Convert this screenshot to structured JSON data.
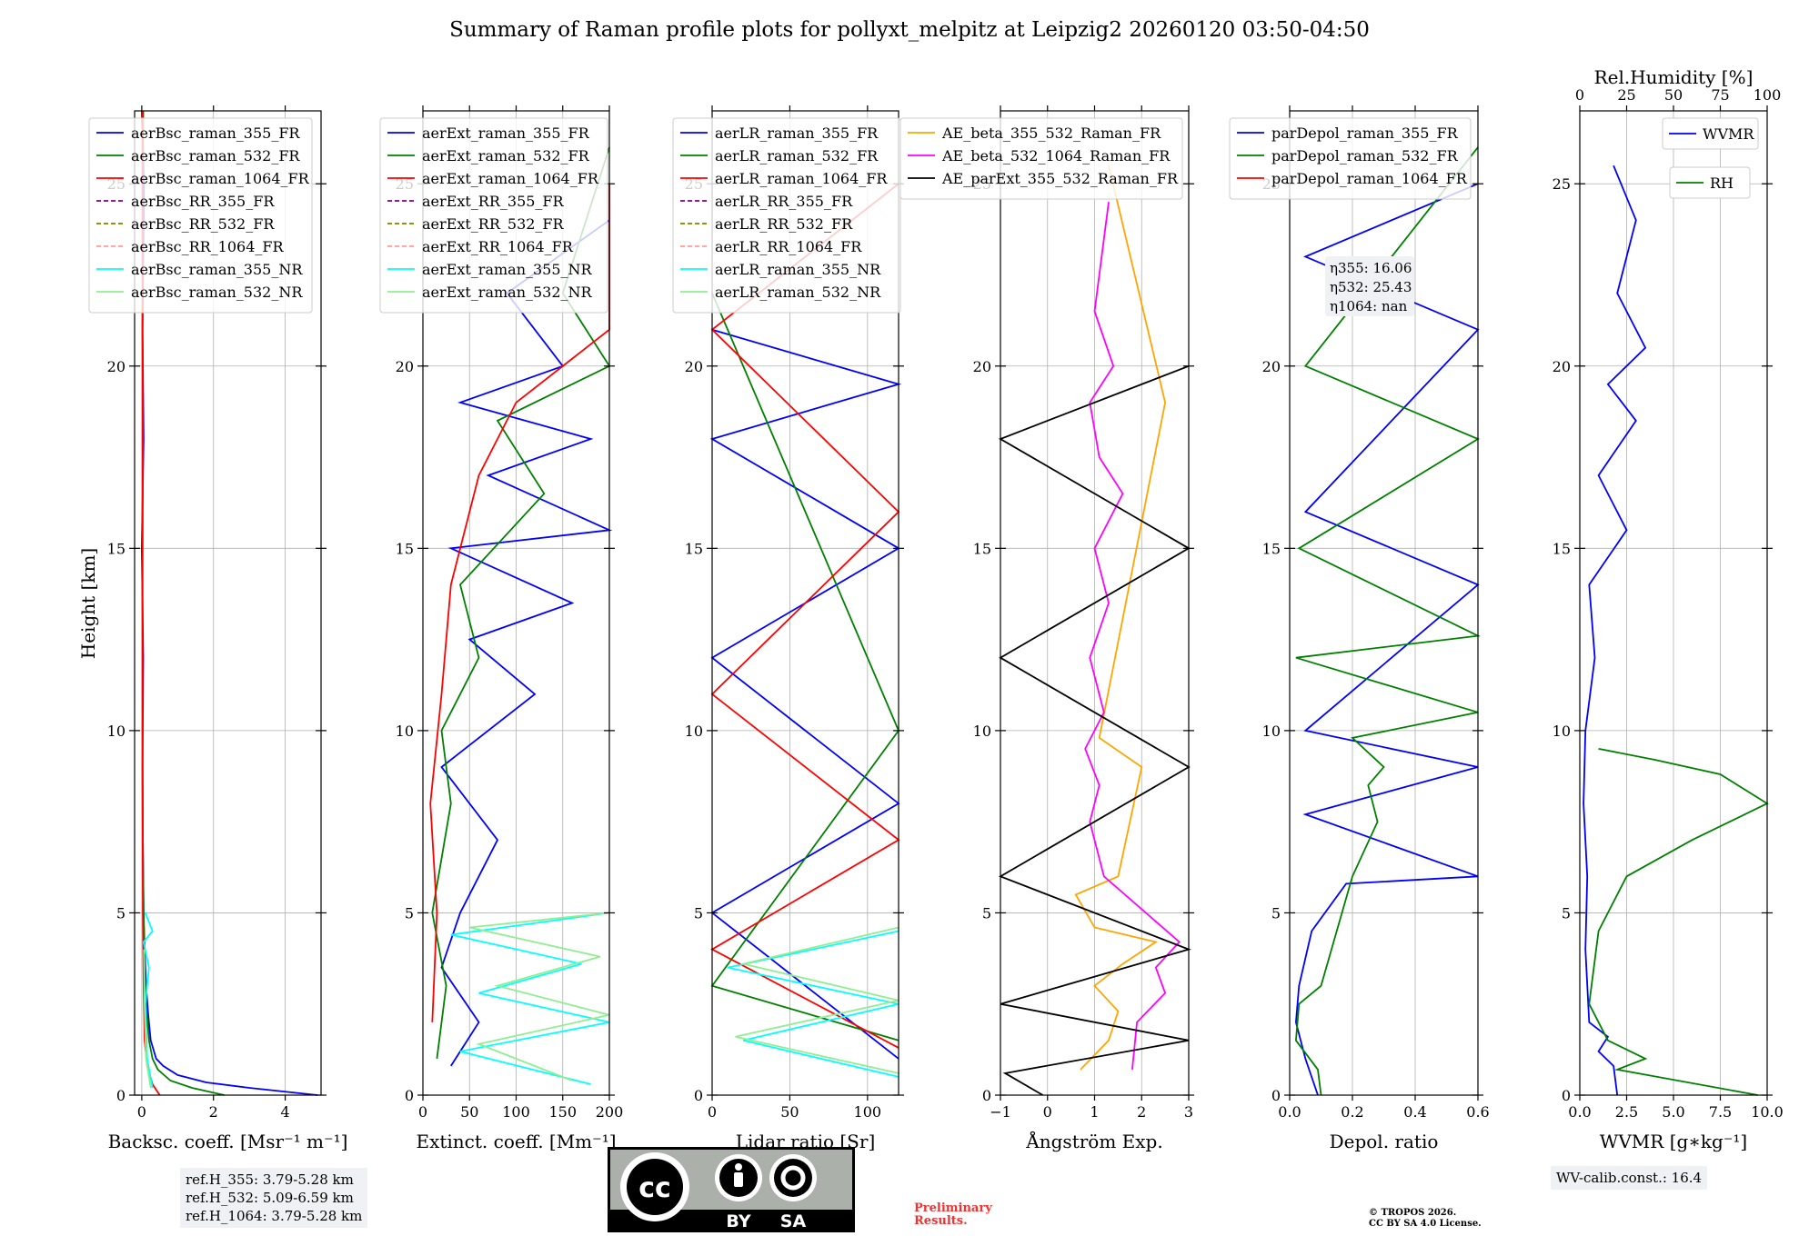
{
  "figure_title": "Summary of Raman profile plots for pollyxt_melpitz at Leipzig2 20260120 03:50-04:50",
  "y_axis_label": "Height [km]",
  "ref_heights": [
    "ref.H_355: 3.79-5.28 km",
    "ref.H_532: 5.09-6.59 km",
    "ref.H_1064: 3.79-5.28 km"
  ],
  "wv_calib": "WV-calib.const.: 16.4",
  "eta": [
    "η355: 16.06",
    "η532: 25.43",
    "η1064: nan"
  ],
  "license": {
    "cc": "cc",
    "by": "BY",
    "sa": "SA"
  },
  "preliminary": [
    "Preliminary",
    "Results."
  ],
  "copyright": [
    "© TROPOS 2026.",
    "CC BY SA 4.0 License."
  ],
  "chart_data": [
    {
      "type": "line",
      "title": "",
      "xlabel": "Backsc. coeff. [Msr⁻¹ m⁻¹]",
      "ylabel": "Height [km]",
      "xlim": [
        -0.2,
        5
      ],
      "ylim": [
        0,
        27
      ],
      "xticks": [
        "0",
        "2",
        "4"
      ],
      "yticks": [
        "0",
        "5",
        "10",
        "15",
        "20",
        "25"
      ],
      "grid": true,
      "legend_position": "top-left",
      "legend": [
        "aerBsc_raman_355_FR",
        "aerBsc_raman_532_FR",
        "aerBsc_raman_1064_FR",
        "aerBsc_RR_355_FR",
        "aerBsc_RR_532_FR",
        "aerBsc_RR_1064_FR",
        "aerBsc_raman_355_NR",
        "aerBsc_raman_532_NR"
      ],
      "series": [
        {
          "name": "aerBsc_raman_355_FR",
          "color": "#0000ff",
          "style": "solid",
          "x": [
            4.9,
            3.0,
            1.8,
            1.0,
            0.6,
            0.4,
            0.25,
            0.18,
            0.12,
            0.08,
            0.05,
            0.03,
            0.02,
            0.04,
            0.0,
            0.05,
            0.02,
            0.06,
            0.0
          ],
          "y": [
            0.0,
            0.2,
            0.35,
            0.55,
            0.8,
            1.0,
            1.5,
            2.2,
            3.0,
            4.0,
            5.0,
            7.0,
            9.0,
            12.0,
            15.0,
            18.0,
            21.0,
            25.0,
            27.0
          ]
        },
        {
          "name": "aerBsc_raman_532_FR",
          "color": "#008000",
          "style": "solid",
          "x": [
            2.3,
            1.4,
            0.8,
            0.45,
            0.3,
            0.2,
            0.12,
            0.08,
            0.05,
            0.03,
            0.02,
            0.02,
            0.03,
            0.02,
            0.03,
            0.04
          ],
          "y": [
            0.0,
            0.2,
            0.4,
            0.7,
            1.0,
            1.5,
            2.5,
            3.5,
            5.0,
            7.0,
            10.0,
            14.0,
            18.0,
            21.0,
            24.0,
            27.0
          ]
        },
        {
          "name": "aerBsc_raman_1064_FR",
          "color": "#ff0000",
          "style": "solid",
          "x": [
            0.5,
            0.3,
            0.15,
            0.08,
            0.05,
            0.03,
            0.02,
            0.02,
            0.02,
            0.02
          ],
          "y": [
            0.0,
            0.3,
            0.8,
            1.5,
            3.0,
            5.0,
            8.0,
            14.0,
            20.0,
            27.0
          ]
        },
        {
          "name": "aerBsc_raman_355_NR",
          "color": "#00ffff",
          "style": "solid",
          "x": [
            0.3,
            0.15,
            0.1,
            0.2,
            0.05,
            0.3,
            0.1
          ],
          "y": [
            0.2,
            1.0,
            2.5,
            3.5,
            4.2,
            4.5,
            5.0
          ]
        },
        {
          "name": "aerBsc_raman_532_NR",
          "color": "#90ee90",
          "style": "solid",
          "x": [
            0.25,
            0.12,
            0.08,
            0.06
          ],
          "y": [
            0.2,
            1.0,
            2.5,
            4.0
          ]
        }
      ]
    },
    {
      "type": "line",
      "title": "",
      "xlabel": "Extinct. coeff. [Mm⁻¹]",
      "ylabel": "",
      "xlim": [
        0,
        200
      ],
      "ylim": [
        0,
        27
      ],
      "xticks": [
        "0",
        "50",
        "100",
        "150",
        "200"
      ],
      "yticks": [
        "0",
        "5",
        "10",
        "15",
        "20",
        "25"
      ],
      "grid": true,
      "legend_position": "top-left",
      "legend": [
        "aerExt_raman_355_FR",
        "aerExt_raman_532_FR",
        "aerExt_raman_1064_FR",
        "aerExt_RR_355_FR",
        "aerExt_RR_532_FR",
        "aerExt_RR_1064_FR",
        "aerExt_raman_355_NR",
        "aerExt_raman_532_NR"
      ],
      "series": [
        {
          "name": "aerExt_raman_355_FR",
          "color": "#0000ff",
          "style": "solid",
          "x": [
            30,
            60,
            20,
            40,
            80,
            20,
            120,
            50,
            160,
            30,
            200,
            70,
            180,
            40,
            150,
            90,
            200
          ],
          "y": [
            0.8,
            2.0,
            3.5,
            5.0,
            7.0,
            9.0,
            11.0,
            12.5,
            13.5,
            15.0,
            15.5,
            17.0,
            18.0,
            19.0,
            20.0,
            22.0,
            24.0
          ]
        },
        {
          "name": "aerExt_raman_532_FR",
          "color": "#008000",
          "style": "solid",
          "x": [
            15,
            25,
            10,
            30,
            20,
            60,
            40,
            130,
            80,
            200,
            150,
            200
          ],
          "y": [
            1.0,
            3.0,
            5.0,
            8.0,
            10.0,
            12.0,
            14.0,
            16.5,
            18.5,
            20.0,
            22.0,
            26.0
          ]
        },
        {
          "name": "aerExt_raman_1064_FR",
          "color": "#ff0000",
          "style": "solid",
          "x": [
            10,
            15,
            8,
            20,
            30,
            60,
            100,
            200,
            200
          ],
          "y": [
            2.0,
            5.0,
            8.0,
            11.0,
            14.0,
            17.0,
            19.0,
            21.0,
            25.0
          ]
        },
        {
          "name": "aerExt_raman_355_NR",
          "color": "#00ffff",
          "style": "solid",
          "x": [
            180,
            40,
            200,
            60,
            170,
            30,
            200
          ],
          "y": [
            0.3,
            1.2,
            2.0,
            2.8,
            3.6,
            4.4,
            5.0
          ]
        },
        {
          "name": "aerExt_raman_532_NR",
          "color": "#90ee90",
          "style": "solid",
          "x": [
            160,
            60,
            200,
            80,
            190,
            50,
            200
          ],
          "y": [
            0.4,
            1.4,
            2.2,
            3.0,
            3.8,
            4.6,
            5.0
          ]
        }
      ]
    },
    {
      "type": "line",
      "title": "",
      "xlabel": "Lidar ratio [Sr]",
      "ylabel": "",
      "xlim": [
        0,
        120
      ],
      "ylim": [
        0,
        27
      ],
      "xticks": [
        "0",
        "50",
        "100"
      ],
      "yticks": [
        "0",
        "5",
        "10",
        "15",
        "20",
        "25"
      ],
      "grid": true,
      "legend_position": "top-left",
      "legend": [
        "aerLR_raman_355_FR",
        "aerLR_raman_532_FR",
        "aerLR_raman_1064_FR",
        "aerLR_RR_355_FR",
        "aerLR_RR_532_FR",
        "aerLR_RR_1064_FR",
        "aerLR_raman_355_NR",
        "aerLR_raman_532_NR"
      ],
      "series": [
        {
          "name": "aerLR_raman_355_FR",
          "color": "#0000ff",
          "style": "solid",
          "x": [
            120,
            0,
            120,
            0,
            120,
            0,
            120,
            0
          ],
          "y": [
            1.0,
            5.0,
            8.0,
            12.0,
            15.0,
            18.0,
            19.5,
            21.0
          ]
        },
        {
          "name": "aerLR_raman_532_FR",
          "color": "#008000",
          "style": "solid",
          "x": [
            120,
            0,
            120,
            0
          ],
          "y": [
            1.5,
            3.0,
            10.0,
            22.0
          ]
        },
        {
          "name": "aerLR_raman_1064_FR",
          "color": "#ff0000",
          "style": "solid",
          "x": [
            120,
            0,
            120,
            0,
            120,
            0,
            120
          ],
          "y": [
            1.3,
            4.0,
            7.0,
            11.0,
            16.0,
            21.0,
            25.0
          ]
        },
        {
          "name": "aerLR_raman_355_NR",
          "color": "#00ffff",
          "style": "solid",
          "x": [
            120,
            20,
            120,
            10,
            120
          ],
          "y": [
            0.5,
            1.5,
            2.5,
            3.5,
            4.5
          ]
        },
        {
          "name": "aerLR_raman_532_NR",
          "color": "#90ee90",
          "style": "solid",
          "x": [
            120,
            15,
            120,
            20,
            120
          ],
          "y": [
            0.6,
            1.6,
            2.6,
            3.6,
            4.6
          ]
        }
      ]
    },
    {
      "type": "line",
      "title": "",
      "xlabel": "Ångström Exp.",
      "ylabel": "",
      "xlim": [
        -1,
        3
      ],
      "ylim": [
        0,
        27
      ],
      "xticks": [
        "−1",
        "0",
        "1",
        "2",
        "3"
      ],
      "yticks": [
        "0",
        "5",
        "10",
        "15",
        "20",
        "25"
      ],
      "grid": true,
      "legend_position": "top-right",
      "legend": [
        "AE_beta_355_532_Raman_FR",
        "AE_beta_532_1064_Raman_FR",
        "AE_parExt_355_532_Raman_FR"
      ],
      "series": [
        {
          "name": "AE_beta_355_532_Raman_FR",
          "color": "#ffa500",
          "style": "solid",
          "x": [
            0.7,
            1.3,
            1.5,
            1.0,
            1.6,
            2.3,
            1.0,
            0.6,
            1.5,
            2.0,
            1.1,
            2.5,
            1.3
          ],
          "y": [
            0.7,
            1.5,
            2.3,
            3.0,
            3.6,
            4.2,
            4.6,
            5.5,
            6.0,
            9.0,
            9.8,
            19.0,
            25.5
          ]
        },
        {
          "name": "AE_beta_532_1064_Raman_FR",
          "color": "#ff00ff",
          "style": "solid",
          "x": [
            1.8,
            1.9,
            2.5,
            2.3,
            2.8,
            1.2,
            0.9,
            1.1,
            0.8,
            1.2,
            0.9,
            1.3,
            1.0,
            1.6,
            1.1,
            0.9,
            1.4,
            1.0,
            1.3
          ],
          "y": [
            0.7,
            2.0,
            2.8,
            3.5,
            4.2,
            6.0,
            7.5,
            8.5,
            9.5,
            10.5,
            12.0,
            13.5,
            15.0,
            16.5,
            17.5,
            19.0,
            20.0,
            21.5,
            24.5
          ]
        },
        {
          "name": "AE_parExt_355_532_Raman_FR",
          "color": "#000000",
          "style": "solid",
          "x": [
            -0.1,
            -0.9,
            3.0,
            -1.0,
            3.0,
            -1.0,
            3.0,
            -1.0,
            3.0,
            -1.0,
            3.0
          ],
          "y": [
            0.0,
            0.6,
            1.5,
            2.5,
            4.0,
            6.0,
            9.0,
            12.0,
            15.0,
            18.0,
            20.0
          ]
        }
      ]
    },
    {
      "type": "line",
      "title": "",
      "xlabel": "Depol. ratio",
      "ylabel": "",
      "xlim": [
        0,
        0.6
      ],
      "ylim": [
        0,
        27
      ],
      "xticks": [
        "0.0",
        "0.2",
        "0.4",
        "0.6"
      ],
      "yticks": [
        "0",
        "5",
        "10",
        "15",
        "20",
        "25"
      ],
      "grid": true,
      "legend_position": "top-left",
      "legend": [
        "parDepol_raman_355_FR",
        "parDepol_raman_532_FR",
        "parDepol_raman_1064_FR"
      ],
      "series": [
        {
          "name": "parDepol_raman_355_FR",
          "color": "#0000ff",
          "style": "solid",
          "x": [
            0.09,
            0.05,
            0.02,
            0.03,
            0.07,
            0.18,
            0.6,
            0.05,
            0.6,
            0.05,
            0.6,
            0.05,
            0.6,
            0.05,
            0.6
          ],
          "y": [
            0.0,
            1.0,
            2.0,
            3.0,
            4.5,
            5.8,
            6.0,
            7.7,
            9.0,
            10.0,
            14.0,
            16.0,
            21.0,
            23.0,
            25.0
          ]
        },
        {
          "name": "parDepol_raman_532_FR",
          "color": "#008000",
          "style": "solid",
          "x": [
            0.1,
            0.09,
            0.02,
            0.03,
            0.1,
            0.2,
            0.28,
            0.25,
            0.3,
            0.2,
            0.6,
            0.02,
            0.6,
            0.03,
            0.6,
            0.05,
            0.6
          ],
          "y": [
            0.0,
            0.7,
            1.5,
            2.5,
            3.0,
            6.0,
            7.5,
            8.5,
            9.0,
            9.8,
            10.5,
            12.0,
            12.6,
            15.0,
            18.0,
            20.0,
            26.0
          ]
        }
      ]
    },
    {
      "type": "line",
      "title": "Rel.Humidity [%]",
      "xlabel": "WVMR [g∗kg⁻¹]",
      "ylabel": "",
      "xlim": [
        0,
        10
      ],
      "ylim": [
        0,
        27
      ],
      "xticks": [
        "0.0",
        "2.5",
        "5.0",
        "7.5",
        "10.0"
      ],
      "x2lim": [
        0,
        100
      ],
      "x2ticks": [
        "0",
        "25",
        "50",
        "75",
        "100"
      ],
      "yticks": [
        "0",
        "5",
        "10",
        "15",
        "20",
        "25"
      ],
      "grid": true,
      "legend_position": "top-right",
      "legend": [
        "WVMR",
        "RH"
      ],
      "series": [
        {
          "name": "WVMR",
          "color": "#0000ff",
          "style": "solid",
          "axis": "x",
          "x": [
            2.0,
            1.8,
            1.0,
            1.5,
            0.5,
            0.3,
            0.4,
            0.2,
            0.3,
            0.8,
            0.5,
            2.5,
            1.0,
            3.0,
            1.5,
            3.5,
            2.0,
            3.0,
            1.8
          ],
          "y": [
            0.0,
            0.8,
            1.2,
            1.6,
            2.0,
            4.0,
            6.0,
            8.0,
            10.0,
            12.0,
            14.0,
            15.5,
            17.0,
            18.5,
            19.5,
            20.5,
            22.0,
            24.0,
            25.5
          ]
        },
        {
          "name": "RH",
          "color": "#008000",
          "style": "solid",
          "axis": "x2",
          "x": [
            95,
            20,
            35,
            15,
            5,
            10,
            25,
            60,
            100,
            75,
            40,
            10
          ],
          "y": [
            0.0,
            0.7,
            1.0,
            1.5,
            2.5,
            4.5,
            6.0,
            7.0,
            8.0,
            8.8,
            9.2,
            9.5
          ]
        }
      ]
    }
  ]
}
